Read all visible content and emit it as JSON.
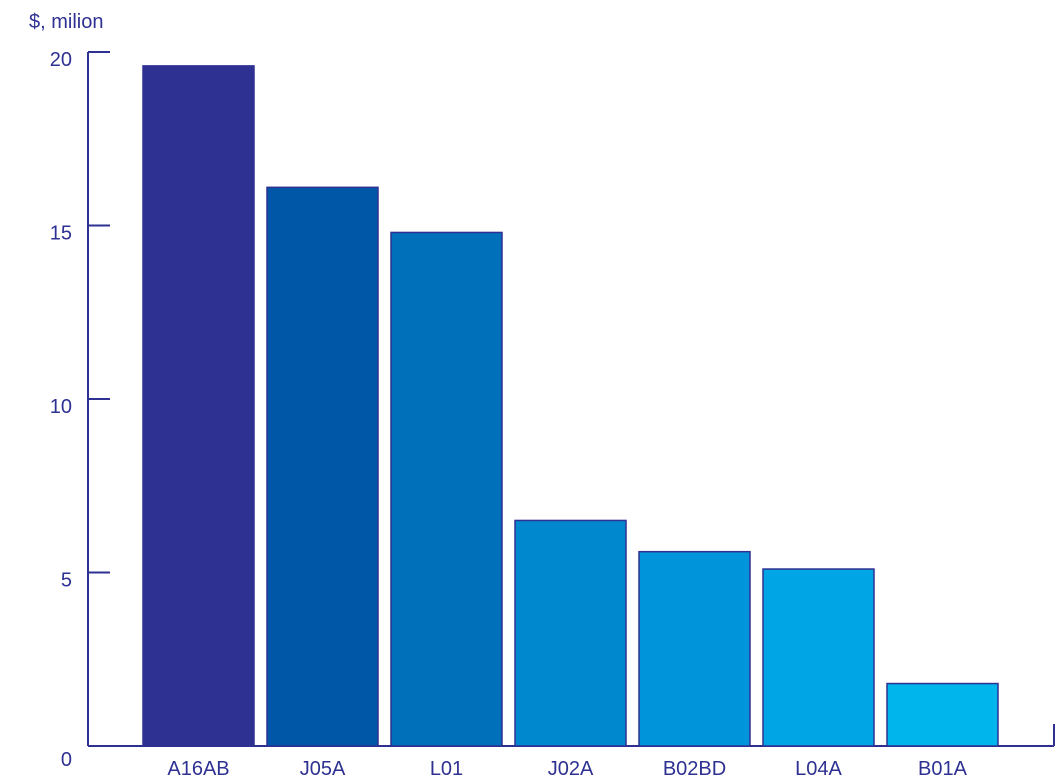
{
  "chart_data": {
    "type": "bar",
    "title": "",
    "xlabel": "",
    "ylabel": "$, milion",
    "ylim": [
      0,
      20
    ],
    "yticks": [
      0,
      5,
      10,
      15,
      20
    ],
    "grid": false,
    "categories": [
      "A16AB",
      "J05A",
      "L01",
      "J02A",
      "B02BD",
      "L04A",
      "B01A"
    ],
    "values": [
      19.6,
      16.1,
      14.8,
      6.5,
      5.6,
      5.1,
      1.8
    ],
    "colors": [
      "#2e3192",
      "#0057a8",
      "#0070bb",
      "#0088cf",
      "#0095da",
      "#00a5e6",
      "#00b5ec"
    ],
    "axis_color": "#2e3192"
  }
}
